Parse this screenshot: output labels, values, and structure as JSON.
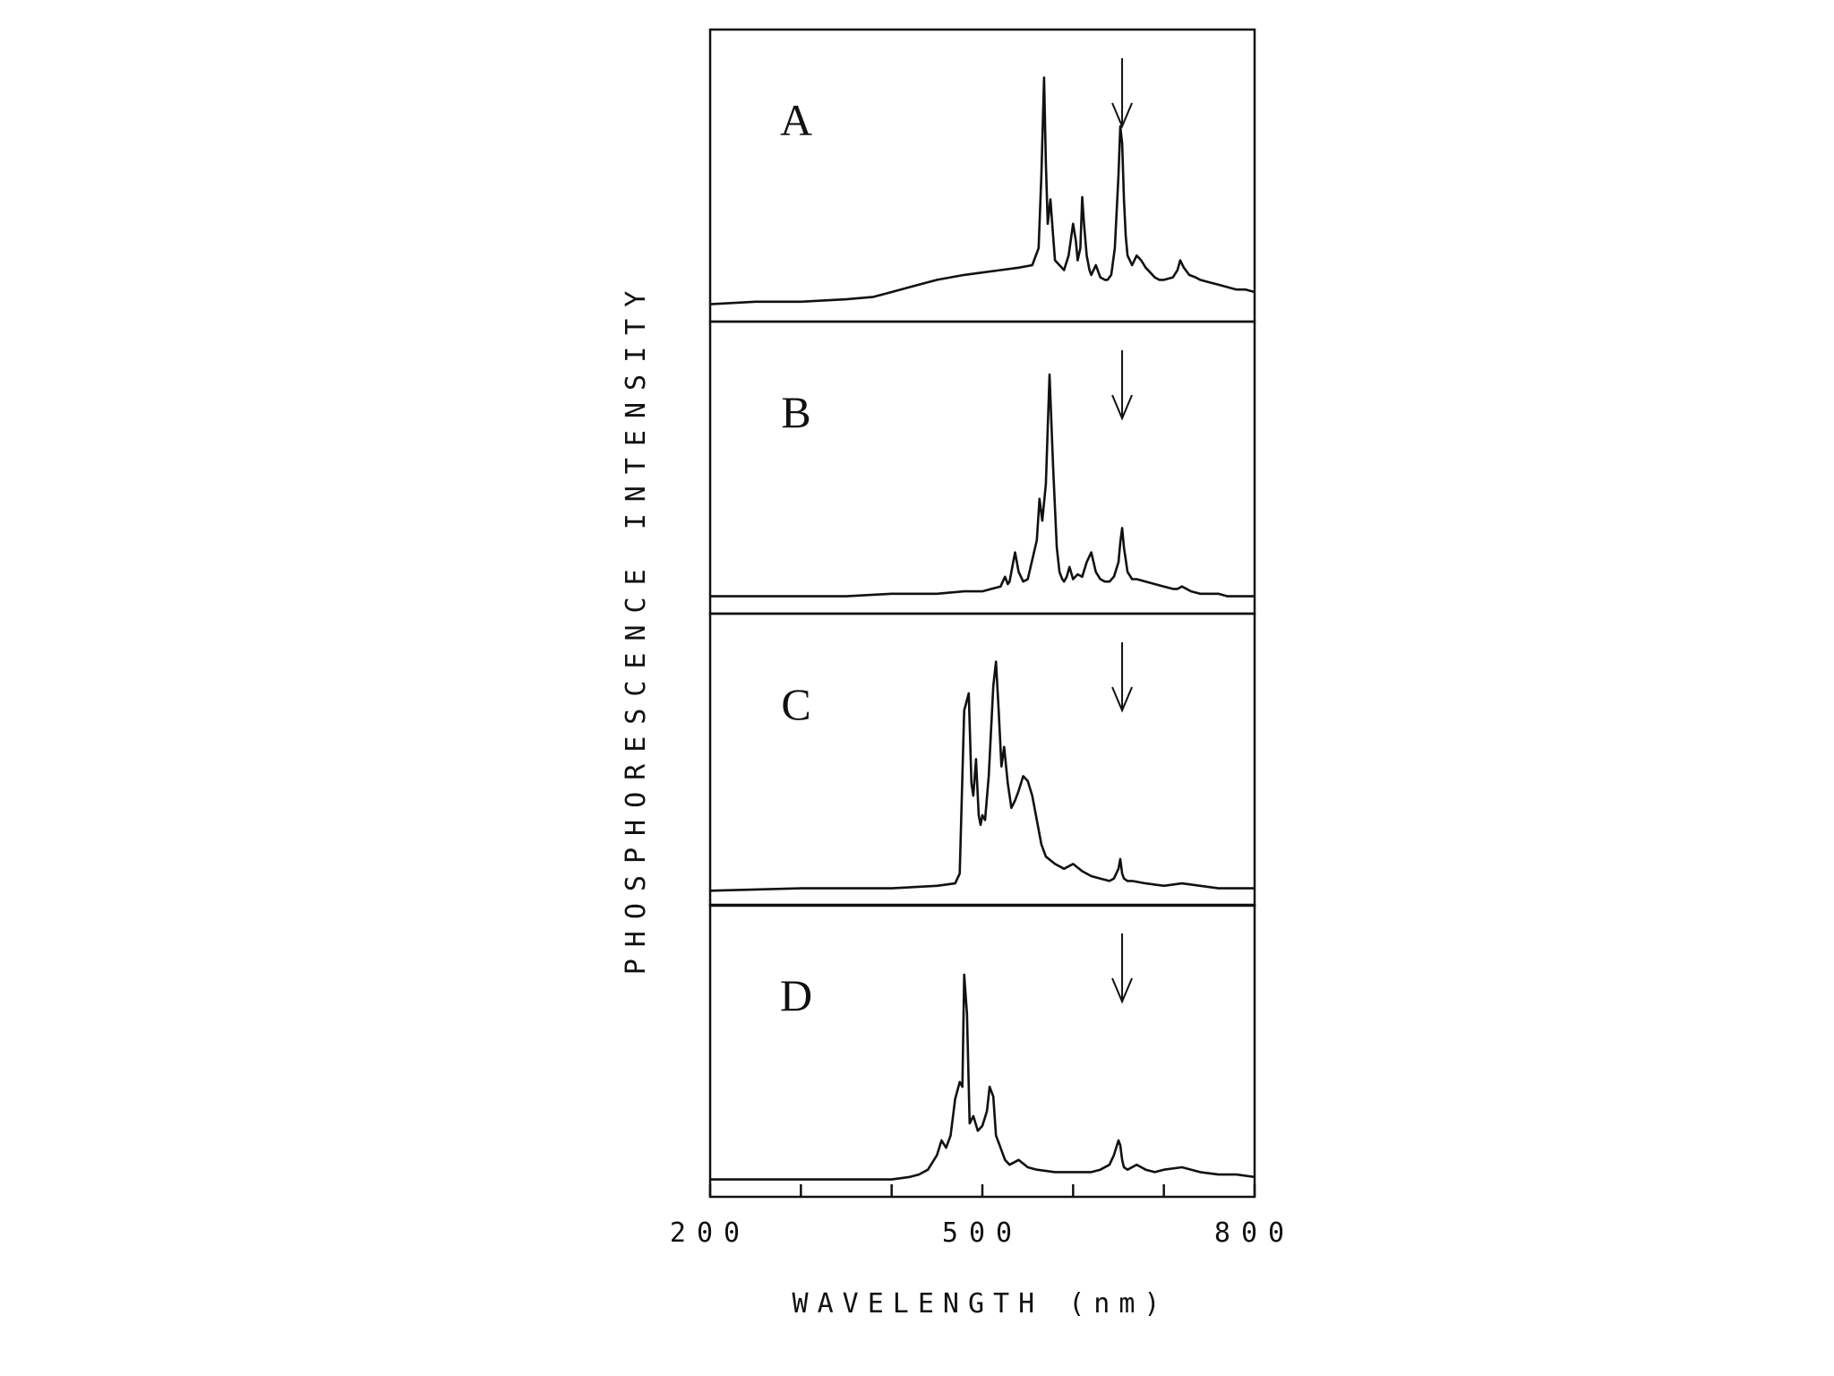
{
  "chart_data": {
    "type": "line",
    "xlabel": "WAVELENGTH (nm)",
    "ylabel": "PHOSPHORESCENCE INTENSITY",
    "xlim": [
      200,
      800
    ],
    "x_ticks": [
      200,
      300,
      400,
      500,
      600,
      700,
      800
    ],
    "x_tick_labels": [
      "200",
      "500",
      "800"
    ],
    "ylim": [
      0,
      1
    ],
    "grid": false,
    "panels": [
      {
        "label": "A",
        "arrow_at_nm": 654,
        "x": [
          200,
          250,
          300,
          350,
          380,
          400,
          420,
          450,
          480,
          500,
          520,
          540,
          555,
          562,
          565,
          568,
          570,
          572,
          575,
          578,
          580,
          585,
          590,
          595,
          600,
          603,
          605,
          608,
          610,
          612,
          615,
          618,
          620,
          625,
          630,
          635,
          638,
          642,
          646,
          650,
          652,
          654,
          656,
          658,
          660,
          665,
          670,
          675,
          680,
          685,
          690,
          695,
          700,
          710,
          715,
          718,
          722,
          728,
          735,
          740,
          750,
          760,
          770,
          780,
          790,
          800
        ],
        "y": [
          0.02,
          0.03,
          0.03,
          0.04,
          0.05,
          0.07,
          0.09,
          0.12,
          0.14,
          0.15,
          0.16,
          0.17,
          0.18,
          0.25,
          0.55,
          0.95,
          0.6,
          0.35,
          0.45,
          0.3,
          0.2,
          0.18,
          0.16,
          0.22,
          0.35,
          0.28,
          0.2,
          0.25,
          0.46,
          0.35,
          0.22,
          0.16,
          0.14,
          0.18,
          0.13,
          0.12,
          0.12,
          0.14,
          0.25,
          0.55,
          0.75,
          0.68,
          0.45,
          0.3,
          0.22,
          0.18,
          0.22,
          0.2,
          0.17,
          0.15,
          0.13,
          0.12,
          0.12,
          0.13,
          0.16,
          0.2,
          0.17,
          0.14,
          0.13,
          0.12,
          0.11,
          0.1,
          0.09,
          0.08,
          0.08,
          0.07
        ]
      },
      {
        "label": "B",
        "arrow_at_nm": 654,
        "x": [
          200,
          300,
          350,
          400,
          450,
          480,
          500,
          510,
          520,
          525,
          528,
          530,
          533,
          536,
          540,
          545,
          550,
          560,
          563,
          566,
          570,
          574,
          578,
          582,
          585,
          588,
          590,
          593,
          596,
          600,
          605,
          610,
          615,
          620,
          625,
          630,
          635,
          640,
          645,
          650,
          652,
          654,
          656,
          660,
          665,
          670,
          680,
          690,
          700,
          710,
          715,
          720,
          730,
          740,
          750,
          760,
          770,
          780,
          790,
          800
        ],
        "y": [
          0.02,
          0.02,
          0.02,
          0.03,
          0.03,
          0.04,
          0.04,
          0.05,
          0.06,
          0.1,
          0.07,
          0.08,
          0.14,
          0.2,
          0.12,
          0.08,
          0.09,
          0.25,
          0.42,
          0.33,
          0.48,
          0.93,
          0.55,
          0.22,
          0.12,
          0.09,
          0.08,
          0.1,
          0.14,
          0.09,
          0.11,
          0.1,
          0.16,
          0.2,
          0.12,
          0.09,
          0.08,
          0.08,
          0.1,
          0.16,
          0.24,
          0.3,
          0.22,
          0.12,
          0.09,
          0.09,
          0.08,
          0.07,
          0.06,
          0.05,
          0.05,
          0.06,
          0.04,
          0.03,
          0.03,
          0.03,
          0.02,
          0.02,
          0.02,
          0.02
        ]
      },
      {
        "label": "C",
        "arrow_at_nm": 654,
        "x": [
          200,
          300,
          400,
          450,
          470,
          475,
          480,
          485,
          488,
          490,
          493,
          496,
          498,
          500,
          503,
          507,
          512,
          515,
          518,
          521,
          524,
          528,
          532,
          536,
          540,
          545,
          550,
          555,
          560,
          565,
          570,
          580,
          590,
          600,
          610,
          620,
          630,
          640,
          645,
          650,
          652,
          654,
          656,
          660,
          665,
          680,
          700,
          720,
          740,
          760,
          780,
          800
        ],
        "y": [
          0.01,
          0.02,
          0.02,
          0.03,
          0.04,
          0.08,
          0.75,
          0.82,
          0.45,
          0.4,
          0.55,
          0.32,
          0.28,
          0.32,
          0.3,
          0.48,
          0.85,
          0.95,
          0.75,
          0.52,
          0.6,
          0.45,
          0.35,
          0.38,
          0.42,
          0.48,
          0.46,
          0.4,
          0.3,
          0.2,
          0.15,
          0.12,
          0.1,
          0.12,
          0.09,
          0.07,
          0.06,
          0.05,
          0.06,
          0.1,
          0.14,
          0.08,
          0.06,
          0.05,
          0.05,
          0.04,
          0.03,
          0.04,
          0.03,
          0.02,
          0.02,
          0.02
        ]
      },
      {
        "label": "D",
        "arrow_at_nm": 654,
        "x": [
          200,
          300,
          400,
          420,
          430,
          440,
          450,
          455,
          460,
          465,
          470,
          475,
          478,
          480,
          483,
          486,
          490,
          495,
          500,
          505,
          508,
          512,
          515,
          520,
          525,
          530,
          540,
          550,
          560,
          580,
          600,
          620,
          630,
          640,
          645,
          650,
          652,
          654,
          656,
          660,
          670,
          680,
          690,
          700,
          720,
          740,
          760,
          780,
          800
        ],
        "y": [
          0.02,
          0.02,
          0.02,
          0.03,
          0.04,
          0.06,
          0.12,
          0.18,
          0.15,
          0.2,
          0.35,
          0.42,
          0.4,
          0.86,
          0.7,
          0.25,
          0.28,
          0.22,
          0.24,
          0.3,
          0.4,
          0.36,
          0.2,
          0.15,
          0.1,
          0.08,
          0.1,
          0.07,
          0.06,
          0.05,
          0.05,
          0.05,
          0.06,
          0.08,
          0.12,
          0.18,
          0.16,
          0.1,
          0.07,
          0.06,
          0.08,
          0.06,
          0.05,
          0.06,
          0.07,
          0.05,
          0.04,
          0.04,
          0.03
        ]
      }
    ]
  }
}
